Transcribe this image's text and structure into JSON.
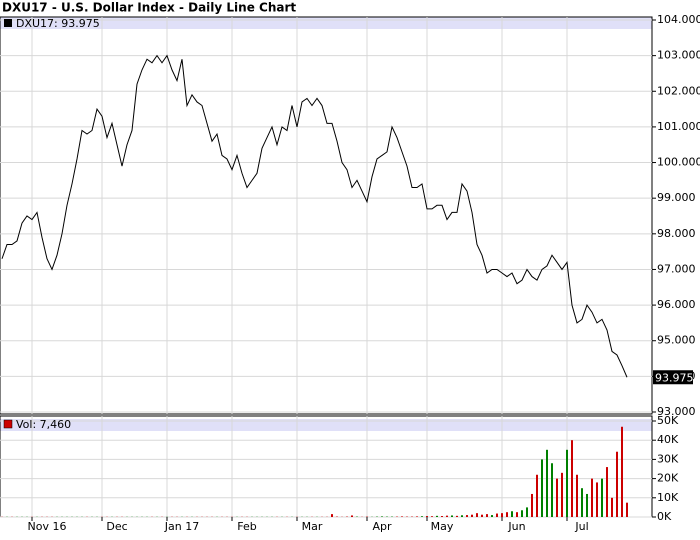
{
  "chart_data": [
    {
      "type": "line",
      "title": "DXU17 - U.S. Dollar Index - Daily Line Chart",
      "series": [
        {
          "name": "DXU17: 93.975",
          "color": "#000000",
          "values": [
            97.3,
            97.7,
            97.7,
            97.8,
            98.3,
            98.5,
            98.4,
            98.6,
            97.9,
            97.3,
            97.0,
            97.4,
            98.0,
            98.8,
            99.4,
            100.1,
            100.9,
            100.8,
            100.9,
            101.5,
            101.3,
            100.7,
            101.1,
            100.5,
            99.9,
            100.5,
            100.9,
            102.2,
            102.6,
            102.9,
            102.8,
            103.0,
            102.8,
            103.0,
            102.6,
            102.3,
            102.9,
            101.6,
            101.9,
            101.7,
            101.6,
            101.1,
            100.6,
            100.8,
            100.2,
            100.1,
            99.8,
            100.2,
            99.7,
            99.3,
            99.5,
            99.7,
            100.4,
            100.7,
            101.0,
            100.5,
            101.0,
            100.9,
            101.6,
            101.0,
            101.7,
            101.8,
            101.6,
            101.8,
            101.6,
            101.1,
            101.1,
            100.6,
            100.0,
            99.8,
            99.3,
            99.5,
            99.2,
            98.9,
            99.6,
            100.1,
            100.2,
            100.3,
            101.0,
            100.7,
            100.3,
            99.9,
            99.3,
            99.3,
            99.4,
            98.7,
            98.7,
            98.8,
            98.8,
            98.4,
            98.6,
            98.6,
            99.4,
            99.2,
            98.6,
            97.7,
            97.4,
            96.9,
            97.0,
            97.0,
            96.9,
            96.8,
            96.9,
            96.6,
            96.7,
            97.0,
            96.8,
            96.7,
            97.0,
            97.1,
            97.4,
            97.2,
            97.0,
            97.2,
            96.0,
            95.5,
            95.6,
            96.0,
            95.8,
            95.5,
            95.6,
            95.3,
            94.7,
            94.6,
            94.3,
            93.975
          ]
        }
      ],
      "last_value_label": "93.975",
      "ylim": [
        93,
        104
      ],
      "yticks": [
        {
          "value": 93,
          "label": "93.000"
        },
        {
          "value": 94,
          "label": "94.000"
        },
        {
          "value": 95,
          "label": "95.000"
        },
        {
          "value": 96,
          "label": "96.000"
        },
        {
          "value": 97,
          "label": "97.000"
        },
        {
          "value": 98,
          "label": "98.000"
        },
        {
          "value": 99,
          "label": "99.000"
        },
        {
          "value": 100,
          "label": "100.000"
        },
        {
          "value": 101,
          "label": "101.000"
        },
        {
          "value": 102,
          "label": "102.000"
        },
        {
          "value": 103,
          "label": "103.000"
        },
        {
          "value": 104,
          "label": "104.000"
        }
      ],
      "grid": true
    },
    {
      "type": "bar",
      "categories": [
        null,
        null,
        null,
        null,
        null,
        null,
        null,
        null,
        null,
        "Nov 16",
        null,
        null,
        null,
        null,
        null,
        null,
        null,
        null,
        null,
        null,
        null,
        null,
        null,
        "Dec",
        null,
        null,
        null,
        null,
        null,
        null,
        null,
        null,
        null,
        null,
        null,
        null,
        "Jan 17",
        null,
        null,
        null,
        null,
        null,
        null,
        null,
        null,
        null,
        null,
        null,
        null,
        "Feb",
        null,
        null,
        null,
        null,
        null,
        null,
        null,
        null,
        null,
        null,
        null,
        null,
        "Mar",
        null,
        null,
        null,
        null,
        null,
        null,
        null,
        null,
        null,
        null,
        null,
        null,
        null,
        "Apr",
        null,
        null,
        null,
        null,
        null,
        null,
        null,
        null,
        null,
        null,
        null,
        "May",
        null,
        null,
        null,
        null,
        null,
        null,
        null,
        null,
        null,
        null,
        null,
        null,
        null,
        null,
        "Jun",
        null,
        null,
        null,
        null,
        null,
        null,
        null,
        null,
        null,
        null,
        null,
        null,
        "Jul",
        null,
        null,
        null,
        null,
        null,
        null,
        null,
        null,
        null
      ],
      "series": [
        {
          "name": "Vol: 7,460",
          "color": "#cc0000",
          "values": [
            100,
            100,
            100,
            100,
            100,
            100,
            100,
            100,
            100,
            100,
            100,
            100,
            100,
            100,
            100,
            100,
            100,
            100,
            100,
            100,
            100,
            100,
            100,
            100,
            100,
            100,
            100,
            100,
            100,
            100,
            100,
            100,
            100,
            100,
            100,
            100,
            100,
            100,
            100,
            100,
            100,
            100,
            100,
            100,
            100,
            100,
            100,
            100,
            100,
            100,
            100,
            100,
            100,
            100,
            100,
            100,
            100,
            100,
            100,
            100,
            100,
            100,
            100,
            100,
            100,
            100,
            1500,
            200,
            100,
            200,
            800,
            200,
            100,
            200,
            100,
            200,
            300,
            200,
            200,
            200,
            300,
            200,
            200,
            300,
            400,
            500,
            400,
            600,
            500,
            700,
            800,
            600,
            900,
            1000,
            1200,
            2000,
            1200,
            1500,
            1000,
            1800,
            2000,
            2500,
            3000,
            2500,
            3500,
            5000,
            12000,
            22000,
            30000,
            35000,
            28000,
            20000,
            23000,
            35000,
            40000,
            22000,
            15000,
            12000,
            20000,
            18000,
            20000,
            26000,
            10000,
            34000,
            47000,
            7460
          ]
        }
      ],
      "up_color": "#008000",
      "down_color": "#cc0000",
      "ylim": [
        0,
        50000
      ],
      "yticks": [
        {
          "value": 0,
          "label": "0K"
        },
        {
          "value": 10000,
          "label": "10K"
        },
        {
          "value": 20000,
          "label": "20K"
        },
        {
          "value": 30000,
          "label": "30K"
        },
        {
          "value": 40000,
          "label": "40K"
        },
        {
          "value": 50000,
          "label": "50K"
        }
      ],
      "grid": true
    }
  ]
}
